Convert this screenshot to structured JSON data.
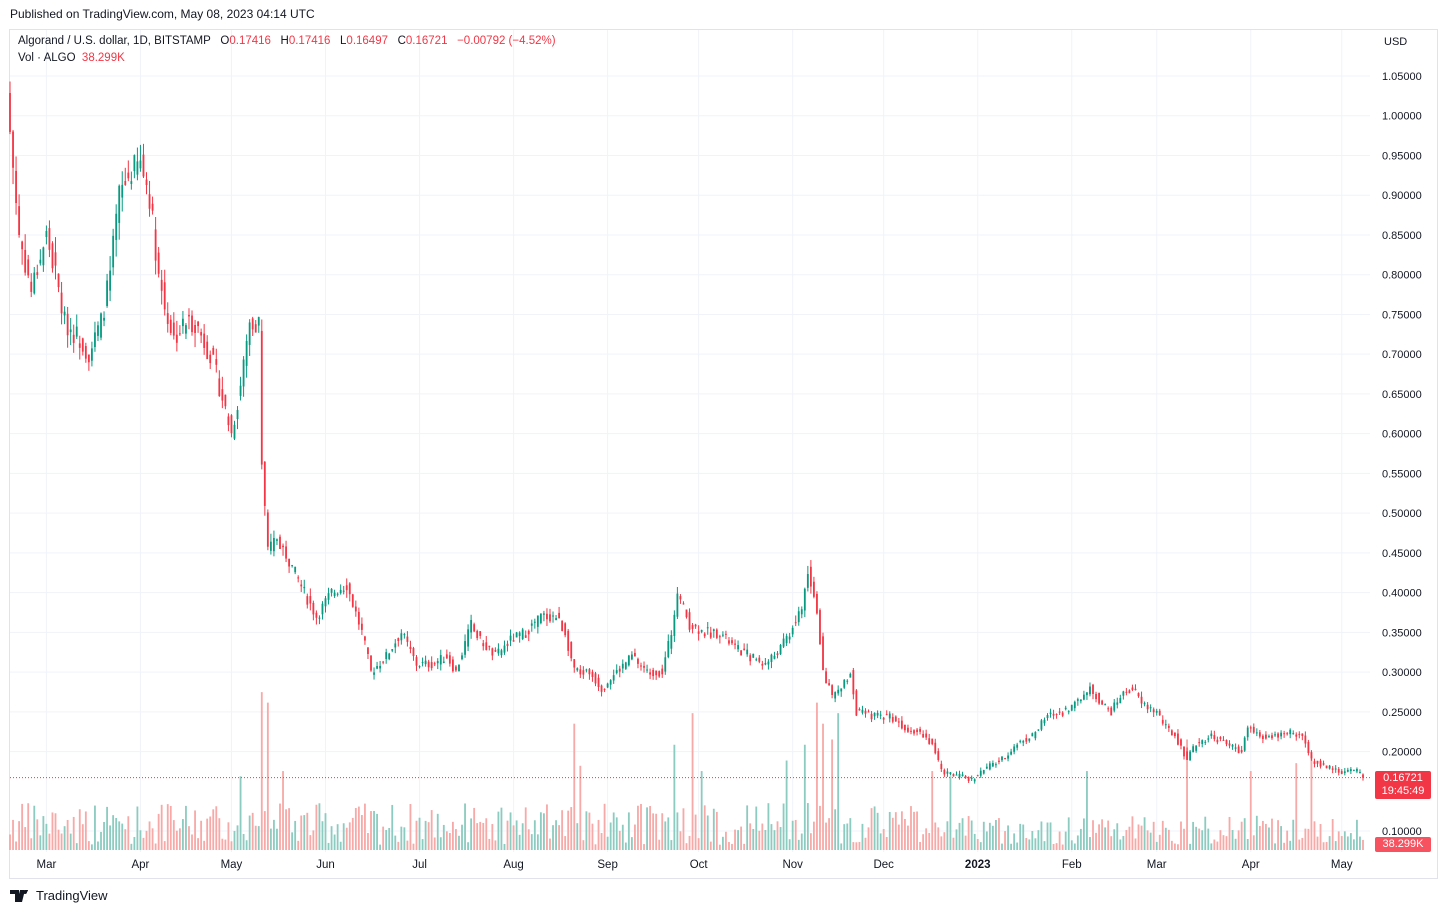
{
  "published": "Published on TradingView.com, May 08, 2023 04:14 UTC",
  "footer_brand": "TradingView",
  "legend": {
    "symbol": "Algorand / U.S. dollar, 1D, BITSTAMP",
    "o_label": "O",
    "o": "0.17416",
    "h_label": "H",
    "h": "0.17416",
    "l_label": "L",
    "l": "0.16497",
    "c_label": "C",
    "c": "0.16721",
    "change": "−0.00792 (−4.52%)",
    "vol_label": "Vol · ALGO",
    "vol": "38.299K"
  },
  "price_tag": {
    "price": "0.16721",
    "countdown": "19:45:49"
  },
  "volume_tag": "38.299K",
  "colors": {
    "up": "#089981",
    "down": "#f23645",
    "vol_up": "#8ccbc0",
    "vol_down": "#f7a9a7"
  },
  "chart_data": {
    "type": "candlestick",
    "title": "Algorand / U.S. dollar, 1D, BITSTAMP",
    "currency_label": "USD",
    "ylim": [
      0.08,
      1.09
    ],
    "y_ticks": [
      "1.05000",
      "1.00000",
      "0.95000",
      "0.90000",
      "0.85000",
      "0.80000",
      "0.75000",
      "0.70000",
      "0.65000",
      "0.60000",
      "0.55000",
      "0.50000",
      "0.45000",
      "0.40000",
      "0.35000",
      "0.30000",
      "0.25000",
      "0.20000",
      "0.10000"
    ],
    "y_tick_values": [
      1.05,
      1.0,
      0.95,
      0.9,
      0.85,
      0.8,
      0.75,
      0.7,
      0.65,
      0.6,
      0.55,
      0.5,
      0.45,
      0.4,
      0.35,
      0.3,
      0.25,
      0.2,
      0.1
    ],
    "x_ticks": [
      {
        "label": "Mar",
        "day": 12
      },
      {
        "label": "Apr",
        "day": 43
      },
      {
        "label": "May",
        "day": 73
      },
      {
        "label": "Jun",
        "day": 104
      },
      {
        "label": "Jul",
        "day": 135
      },
      {
        "label": "Aug",
        "day": 166
      },
      {
        "label": "Sep",
        "day": 197
      },
      {
        "label": "Oct",
        "day": 227
      },
      {
        "label": "Nov",
        "day": 258
      },
      {
        "label": "Dec",
        "day": 288
      },
      {
        "label": "2023",
        "day": 319
      },
      {
        "label": "Feb",
        "day": 350
      },
      {
        "label": "Mar",
        "day": 378
      },
      {
        "label": "Apr",
        "day": 409
      },
      {
        "label": "May",
        "day": 439
      }
    ],
    "day_range": [
      0,
      446
    ],
    "close_points": [
      [
        0,
        0.98
      ],
      [
        3,
        0.85
      ],
      [
        7,
        0.78
      ],
      [
        12,
        0.85
      ],
      [
        15,
        0.8
      ],
      [
        18,
        0.74
      ],
      [
        23,
        0.72
      ],
      [
        26,
        0.7
      ],
      [
        30,
        0.74
      ],
      [
        33,
        0.8
      ],
      [
        36,
        0.9
      ],
      [
        40,
        0.93
      ],
      [
        43,
        0.94
      ],
      [
        46,
        0.9
      ],
      [
        49,
        0.8
      ],
      [
        51,
        0.76
      ],
      [
        54,
        0.72
      ],
      [
        58,
        0.74
      ],
      [
        61,
        0.74
      ],
      [
        66,
        0.7
      ],
      [
        69,
        0.66
      ],
      [
        73,
        0.6
      ],
      [
        76,
        0.66
      ],
      [
        79,
        0.74
      ],
      [
        82,
        0.74
      ],
      [
        83,
        0.56
      ],
      [
        85,
        0.45
      ],
      [
        88,
        0.47
      ],
      [
        92,
        0.44
      ],
      [
        97,
        0.4
      ],
      [
        101,
        0.37
      ],
      [
        106,
        0.4
      ],
      [
        111,
        0.41
      ],
      [
        116,
        0.35
      ],
      [
        119,
        0.3
      ],
      [
        124,
        0.32
      ],
      [
        129,
        0.35
      ],
      [
        134,
        0.31
      ],
      [
        139,
        0.31
      ],
      [
        144,
        0.32
      ],
      [
        147,
        0.3
      ],
      [
        152,
        0.36
      ],
      [
        155,
        0.34
      ],
      [
        160,
        0.32
      ],
      [
        165,
        0.34
      ],
      [
        170,
        0.35
      ],
      [
        175,
        0.37
      ],
      [
        180,
        0.37
      ],
      [
        183,
        0.35
      ],
      [
        186,
        0.3
      ],
      [
        191,
        0.3
      ],
      [
        195,
        0.28
      ],
      [
        200,
        0.3
      ],
      [
        205,
        0.32
      ],
      [
        210,
        0.3
      ],
      [
        215,
        0.3
      ],
      [
        218,
        0.35
      ],
      [
        220,
        0.4
      ],
      [
        224,
        0.36
      ],
      [
        229,
        0.35
      ],
      [
        234,
        0.35
      ],
      [
        239,
        0.33
      ],
      [
        244,
        0.32
      ],
      [
        249,
        0.31
      ],
      [
        254,
        0.33
      ],
      [
        257,
        0.35
      ],
      [
        261,
        0.38
      ],
      [
        263,
        0.43
      ],
      [
        266,
        0.38
      ],
      [
        268,
        0.3
      ],
      [
        271,
        0.27
      ],
      [
        274,
        0.28
      ],
      [
        277,
        0.3
      ],
      [
        279,
        0.25
      ],
      [
        284,
        0.245
      ],
      [
        290,
        0.245
      ],
      [
        295,
        0.23
      ],
      [
        300,
        0.225
      ],
      [
        304,
        0.21
      ],
      [
        307,
        0.175
      ],
      [
        312,
        0.17
      ],
      [
        317,
        0.165
      ],
      [
        322,
        0.18
      ],
      [
        327,
        0.19
      ],
      [
        332,
        0.21
      ],
      [
        337,
        0.22
      ],
      [
        342,
        0.245
      ],
      [
        347,
        0.25
      ],
      [
        351,
        0.26
      ],
      [
        356,
        0.28
      ],
      [
        360,
        0.26
      ],
      [
        363,
        0.25
      ],
      [
        366,
        0.27
      ],
      [
        370,
        0.28
      ],
      [
        373,
        0.26
      ],
      [
        378,
        0.25
      ],
      [
        381,
        0.23
      ],
      [
        384,
        0.22
      ],
      [
        388,
        0.19
      ],
      [
        391,
        0.21
      ],
      [
        396,
        0.22
      ],
      [
        401,
        0.21
      ],
      [
        406,
        0.2
      ],
      [
        408,
        0.23
      ],
      [
        413,
        0.22
      ],
      [
        417,
        0.22
      ],
      [
        422,
        0.225
      ],
      [
        426,
        0.22
      ],
      [
        429,
        0.19
      ],
      [
        434,
        0.18
      ],
      [
        439,
        0.175
      ],
      [
        444,
        0.175
      ],
      [
        446,
        0.16721
      ]
    ],
    "volume_unit": "K",
    "volume_spikes": [
      [
        76,
        280
      ],
      [
        83,
        600
      ],
      [
        85,
        560
      ],
      [
        90,
        300
      ],
      [
        152,
        120
      ],
      [
        186,
        480
      ],
      [
        188,
        320
      ],
      [
        219,
        400
      ],
      [
        225,
        520
      ],
      [
        228,
        300
      ],
      [
        256,
        340
      ],
      [
        262,
        400
      ],
      [
        266,
        560
      ],
      [
        268,
        480
      ],
      [
        271,
        420
      ],
      [
        273,
        520
      ],
      [
        304,
        300
      ],
      [
        310,
        280
      ],
      [
        355,
        300
      ],
      [
        388,
        420
      ],
      [
        409,
        300
      ],
      [
        424,
        330
      ],
      [
        429,
        360
      ]
    ],
    "last_volume": 38.299
  }
}
